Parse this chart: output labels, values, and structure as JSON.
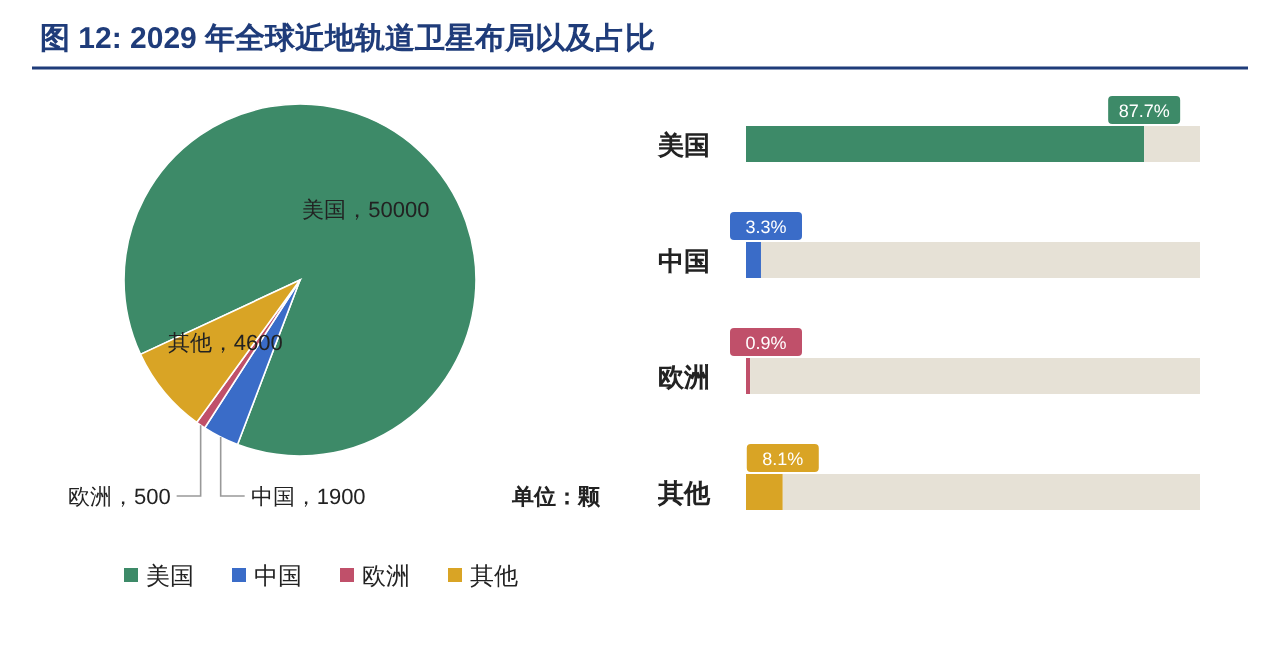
{
  "chart_data": [
    {
      "type": "pie",
      "title": "图 12:  2029 年全球近地轨道卫星布局以及占比",
      "categories": [
        "美国",
        "中国",
        "欧洲",
        "其他"
      ],
      "values": [
        50000,
        1900,
        500,
        4600
      ],
      "colors": [
        "#3d8a68",
        "#3a6cc8",
        "#c0506a",
        "#d9a425"
      ],
      "value_labels": [
        "美国，50000",
        "中国，1900",
        "欧洲，500",
        "其他，4600"
      ],
      "legend": "bottom",
      "annotations": [
        "单位：颗"
      ]
    },
    {
      "type": "bar",
      "orientation": "horizontal",
      "stacked": true,
      "categories": [
        "美国",
        "中国",
        "欧洲",
        "其他"
      ],
      "tick_labels": "y",
      "series": [
        {
          "colors": [
            "#3d8a68",
            "#3a6cc8",
            "#c0506a",
            "#d9a425"
          ],
          "values": [
            87.7,
            3.3,
            0.9,
            8.1
          ],
          "value_labels": [
            "87.7%",
            "3.3%",
            "0.9%",
            "8.1%"
          ]
        },
        {
          "color": "#e6e1d6",
          "values": [
            12.3,
            96.7,
            99.1,
            91.9
          ]
        }
      ]
    }
  ]
}
